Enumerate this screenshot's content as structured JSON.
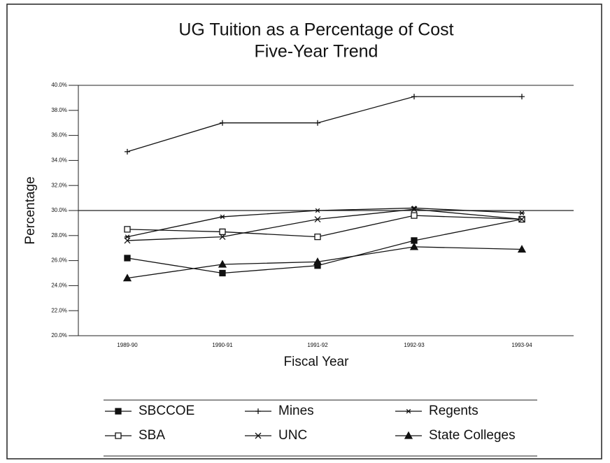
{
  "chart_data": {
    "type": "line",
    "title": "UG Tuition as a Percentage of Cost",
    "subtitle": "Five-Year Trend",
    "x_label": "Fiscal Year",
    "y_label": "Percentage",
    "categories": [
      "1989-90",
      "1990-91",
      "1991-92",
      "1992-93",
      "1993-94"
    ],
    "series": [
      {
        "name": "SBCCOE",
        "color": "#111111",
        "marker": "filled-square",
        "values": [
          26.2,
          25.0,
          25.6,
          27.6,
          29.3
        ]
      },
      {
        "name": "Mines",
        "color": "#111111",
        "marker": "plus",
        "values": [
          34.7,
          37.0,
          37.0,
          39.1,
          39.1
        ]
      },
      {
        "name": "Regents",
        "color": "#111111",
        "marker": "star",
        "values": [
          27.9,
          29.5,
          30.0,
          30.2,
          29.8
        ]
      },
      {
        "name": "SBA",
        "color": "#111111",
        "marker": "open-square",
        "values": [
          28.5,
          28.3,
          27.9,
          29.6,
          29.3
        ]
      },
      {
        "name": "UNC",
        "color": "#111111",
        "marker": "cross",
        "values": [
          27.6,
          27.9,
          29.3,
          30.1,
          29.3
        ]
      },
      {
        "name": "State Colleges",
        "color": "#111111",
        "marker": "filled-triangle",
        "values": [
          24.6,
          25.7,
          25.9,
          27.1,
          26.9
        ]
      }
    ],
    "ylim": [
      20,
      40
    ],
    "yticks": [
      {
        "value": 20,
        "label": "20.0%"
      },
      {
        "value": 22,
        "label": "22.0%"
      },
      {
        "value": 24,
        "label": "24.0%"
      },
      {
        "value": 26,
        "label": "26.0%"
      },
      {
        "value": 28,
        "label": "28.0%"
      },
      {
        "value": 30,
        "label": "30.0%"
      },
      {
        "value": 32,
        "label": "32.0%"
      },
      {
        "value": 34,
        "label": "34.0%"
      },
      {
        "value": 36,
        "label": "36.0%"
      },
      {
        "value": 38,
        "label": "38.0%"
      },
      {
        "value": 40,
        "label": "40.0%"
      }
    ],
    "reference_line": 30,
    "legend": "bottom"
  }
}
